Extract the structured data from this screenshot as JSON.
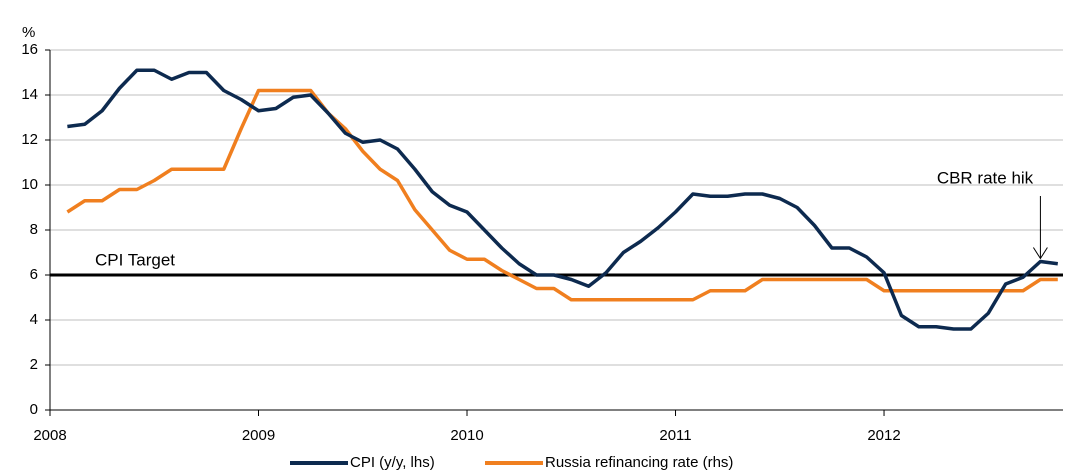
{
  "chart_data": {
    "type": "line",
    "y_unit": "%",
    "x": [
      1,
      2,
      3,
      4,
      5,
      6,
      7,
      8,
      9,
      10,
      11,
      12,
      13,
      14,
      15,
      16,
      17,
      18,
      19,
      20,
      21,
      22,
      23,
      24,
      25,
      26,
      27,
      28,
      29,
      30,
      31,
      32,
      33,
      34,
      35,
      36,
      37,
      38,
      39,
      40,
      41,
      42,
      43,
      44,
      45,
      46,
      47,
      48,
      49,
      50,
      51,
      52,
      53,
      54,
      55,
      56,
      57,
      58
    ],
    "series": [
      {
        "name": "CPI (y/y, lhs)",
        "color": "#0d2a4f",
        "values": [
          12.6,
          12.7,
          13.3,
          14.3,
          15.1,
          15.1,
          14.7,
          15.0,
          15.0,
          14.2,
          13.8,
          13.3,
          13.4,
          13.9,
          14.0,
          13.2,
          12.3,
          11.9,
          12.0,
          11.6,
          10.7,
          9.7,
          9.1,
          8.8,
          8.0,
          7.2,
          6.5,
          6.0,
          6.0,
          5.8,
          5.5,
          6.1,
          7.0,
          7.5,
          8.1,
          8.8,
          9.6,
          9.5,
          9.5,
          9.6,
          9.6,
          9.4,
          9.0,
          8.2,
          7.2,
          7.2,
          6.8,
          6.1,
          4.2,
          3.7,
          3.7,
          3.6,
          3.6,
          4.3,
          5.6,
          5.9,
          6.6,
          6.5
        ]
      },
      {
        "name": "Russia refinancing rate (rhs)",
        "color": "#f07f1f",
        "values": [
          8.8,
          9.3,
          9.3,
          9.8,
          9.8,
          10.2,
          10.7,
          10.7,
          10.7,
          10.7,
          12.5,
          14.2,
          14.2,
          14.2,
          14.2,
          13.2,
          12.5,
          11.5,
          10.7,
          10.2,
          8.9,
          8.0,
          7.1,
          6.7,
          6.7,
          6.2,
          5.8,
          5.4,
          5.4,
          4.9,
          4.9,
          4.9,
          4.9,
          4.9,
          4.9,
          4.9,
          4.9,
          5.3,
          5.3,
          5.3,
          5.8,
          5.8,
          5.8,
          5.8,
          5.8,
          5.8,
          5.8,
          5.3,
          5.3,
          5.3,
          5.3,
          5.3,
          5.3,
          5.3,
          5.3,
          5.3,
          5.8,
          5.8
        ]
      }
    ],
    "xlim": [
      0,
      58.3
    ],
    "xticks": [
      {
        "value": 0,
        "label": "2008"
      },
      {
        "value": 12,
        "label": "2009"
      },
      {
        "value": 24,
        "label": "2010"
      },
      {
        "value": 36,
        "label": "2011"
      },
      {
        "value": 48,
        "label": "2012"
      }
    ],
    "ylim": [
      0,
      16
    ],
    "yticks": [
      0,
      2,
      4,
      6,
      8,
      10,
      12,
      14,
      16
    ],
    "grid": true,
    "target": {
      "label": "CPI Target",
      "value": 6,
      "color": "#000000"
    },
    "annotation": {
      "text": "CBR rate hik",
      "x": 57,
      "y": 6.6
    },
    "legend": "bottom"
  }
}
